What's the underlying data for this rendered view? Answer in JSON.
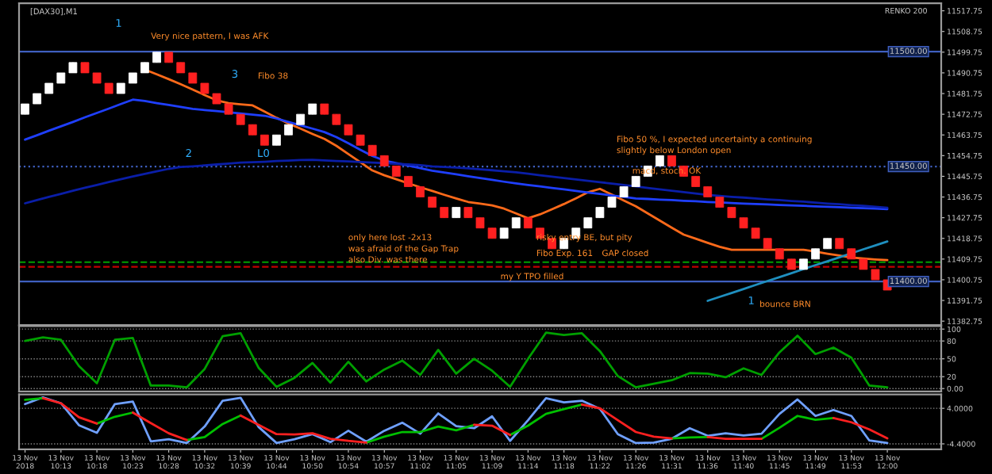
{
  "chart_data": [
    {
      "type": "candlestick",
      "title": "[DAX30],M1",
      "tick_labels": "y",
      "ylim": [
        11381,
        11521
      ],
      "yticks": [
        11382.75,
        11391.75,
        11400.75,
        11409.75,
        11418.75,
        11427.75,
        11436.75,
        11445.75,
        11454.75,
        11463.75,
        11472.75,
        11481.75,
        11490.75,
        11499.75,
        11508.75,
        11517.75
      ],
      "categories": [
        null,
        null,
        null,
        null,
        null,
        null,
        null,
        null,
        null,
        null,
        null,
        null,
        null,
        null,
        null,
        null,
        null,
        null,
        null,
        null,
        null,
        null,
        null,
        null,
        null,
        null,
        null,
        null,
        null,
        null,
        null,
        null,
        null,
        null,
        null,
        null,
        null,
        null,
        null,
        null,
        null,
        null,
        null,
        null,
        null,
        null,
        null,
        null,
        null,
        null,
        null,
        null,
        null,
        null,
        null,
        null,
        null,
        null,
        null,
        null,
        null,
        null,
        null,
        null,
        null,
        null,
        null,
        null,
        null,
        null,
        null,
        null,
        null
      ],
      "ohlc": [
        [
          11472.75,
          11477.25,
          11472.75,
          11477.25
        ],
        [
          11477.25,
          11481.75,
          11477.25,
          11481.75
        ],
        [
          11481.75,
          11486.25,
          11481.75,
          11486.25
        ],
        [
          11486.25,
          11490.75,
          11486.25,
          11490.75
        ],
        [
          11490.75,
          11495.25,
          11490.75,
          11495.25
        ],
        [
          11495.25,
          11495.25,
          11490.75,
          11490.75
        ],
        [
          11490.75,
          11490.75,
          11486.25,
          11486.25
        ],
        [
          11486.25,
          11486.25,
          11481.75,
          11481.75
        ],
        [
          11481.75,
          11486.25,
          11481.75,
          11486.25
        ],
        [
          11486.25,
          11490.75,
          11486.25,
          11490.75
        ],
        [
          11490.75,
          11495.25,
          11490.75,
          11495.25
        ],
        [
          11495.25,
          11499.75,
          11495.25,
          11499.75
        ],
        [
          11499.75,
          11499.75,
          11495.25,
          11495.25
        ],
        [
          11495.25,
          11495.25,
          11490.75,
          11490.75
        ],
        [
          11490.75,
          11490.75,
          11486.25,
          11486.25
        ],
        [
          11486.25,
          11486.25,
          11481.75,
          11481.75
        ],
        [
          11481.75,
          11481.75,
          11477.25,
          11477.25
        ],
        [
          11477.25,
          11477.25,
          11472.75,
          11472.75
        ],
        [
          11472.75,
          11472.75,
          11468.25,
          11468.25
        ],
        [
          11468.25,
          11468.25,
          11463.75,
          11463.75
        ],
        [
          11463.75,
          11463.75,
          11459.25,
          11459.25
        ],
        [
          11459.25,
          11463.75,
          11459.25,
          11463.75
        ],
        [
          11463.75,
          11468.25,
          11463.75,
          11468.25
        ],
        [
          11468.25,
          11472.75,
          11468.25,
          11472.75
        ],
        [
          11472.75,
          11477.25,
          11472.75,
          11477.25
        ],
        [
          11477.25,
          11477.25,
          11472.75,
          11472.75
        ],
        [
          11472.75,
          11472.75,
          11468.25,
          11468.25
        ],
        [
          11468.25,
          11468.25,
          11463.75,
          11463.75
        ],
        [
          11463.75,
          11463.75,
          11459.25,
          11459.25
        ],
        [
          11459.25,
          11459.25,
          11454.75,
          11454.75
        ],
        [
          11454.75,
          11454.75,
          11450.25,
          11450.25
        ],
        [
          11450.25,
          11450.25,
          11445.75,
          11445.75
        ],
        [
          11445.75,
          11445.75,
          11441.25,
          11441.25
        ],
        [
          11441.25,
          11441.25,
          11436.75,
          11436.75
        ],
        [
          11436.75,
          11436.75,
          11432.25,
          11432.25
        ],
        [
          11432.25,
          11432.25,
          11427.75,
          11427.75
        ],
        [
          11427.75,
          11432.25,
          11427.75,
          11432.25
        ],
        [
          11432.25,
          11432.25,
          11427.75,
          11427.75
        ],
        [
          11427.75,
          11427.75,
          11423.25,
          11423.25
        ],
        [
          11423.25,
          11423.25,
          11418.75,
          11418.75
        ],
        [
          11418.75,
          11423.25,
          11418.75,
          11423.25
        ],
        [
          11423.25,
          11427.75,
          11423.25,
          11427.75
        ],
        [
          11427.75,
          11427.75,
          11423.25,
          11423.25
        ],
        [
          11423.25,
          11423.25,
          11418.75,
          11418.75
        ],
        [
          11418.75,
          11418.75,
          11414.25,
          11414.25
        ],
        [
          11414.25,
          11418.75,
          11414.25,
          11418.75
        ],
        [
          11418.75,
          11423.25,
          11418.75,
          11423.25
        ],
        [
          11423.25,
          11427.75,
          11423.25,
          11427.75
        ],
        [
          11427.75,
          11432.25,
          11427.75,
          11432.25
        ],
        [
          11432.25,
          11436.75,
          11432.25,
          11436.75
        ],
        [
          11436.75,
          11441.25,
          11436.75,
          11441.25
        ],
        [
          11441.25,
          11445.75,
          11441.25,
          11445.75
        ],
        [
          11445.75,
          11450.25,
          11445.75,
          11450.25
        ],
        [
          11450.25,
          11454.75,
          11450.25,
          11454.75
        ],
        [
          11454.75,
          11454.75,
          11450.25,
          11450.25
        ],
        [
          11450.25,
          11450.25,
          11445.75,
          11445.75
        ],
        [
          11445.75,
          11445.75,
          11441.25,
          11441.25
        ],
        [
          11441.25,
          11441.25,
          11436.75,
          11436.75
        ],
        [
          11436.75,
          11436.75,
          11432.25,
          11432.25
        ],
        [
          11432.25,
          11432.25,
          11427.75,
          11427.75
        ],
        [
          11427.75,
          11427.75,
          11423.25,
          11423.25
        ],
        [
          11423.25,
          11423.25,
          11418.75,
          11418.75
        ],
        [
          11418.75,
          11418.75,
          11414.25,
          11414.25
        ],
        [
          11414.25,
          11414.25,
          11409.75,
          11409.75
        ],
        [
          11409.75,
          11409.75,
          11405.25,
          11405.25
        ],
        [
          11405.25,
          11409.75,
          11405.25,
          11409.75
        ],
        [
          11409.75,
          11414.25,
          11409.75,
          11414.25
        ],
        [
          11414.25,
          11418.75,
          11414.25,
          11418.75
        ],
        [
          11418.75,
          11418.75,
          11414.25,
          11414.25
        ],
        [
          11414.25,
          11414.25,
          11409.75,
          11409.75
        ],
        [
          11409.75,
          11409.75,
          11405.25,
          11405.25
        ],
        [
          11405.25,
          11405.25,
          11400.75,
          11400.75
        ],
        [
          11400.75,
          11400.75,
          11396.25,
          11396.25
        ]
      ],
      "colors": [
        "#ffffff",
        "#ffffff",
        "#ffffff",
        "#ffffff",
        "#ffffff",
        "#ff2020",
        "#ff2020",
        "#ff2020",
        "#ffffff",
        "#ffffff",
        "#ffffff",
        "#ffffff",
        "#ff2020",
        "#ff2020",
        "#ff2020",
        "#ff2020",
        "#ff2020",
        "#ff2020",
        "#ff2020",
        "#ff2020",
        "#ff2020",
        "#ffffff",
        "#ffffff",
        "#ffffff",
        "#ffffff",
        "#ff2020",
        "#ff2020",
        "#ff2020",
        "#ff2020",
        "#ff2020",
        "#ff2020",
        "#ff2020",
        "#ff2020",
        "#ff2020",
        "#ff2020",
        "#ff2020",
        "#ffffff",
        "#ff2020",
        "#ff2020",
        "#ff2020",
        "#ffffff",
        "#ffffff",
        "#ff2020",
        "#ff2020",
        "#ff2020",
        "#ffffff",
        "#ffffff",
        "#ffffff",
        "#ffffff",
        "#ffffff",
        "#ffffff",
        "#ffffff",
        "#ffffff",
        "#ffffff",
        "#ff2020",
        "#ff2020",
        "#ff2020",
        "#ff2020",
        "#ff2020",
        "#ff2020",
        "#ff2020",
        "#ff2020",
        "#ff2020",
        "#ff2020",
        "#ff2020",
        "#ffffff",
        "#ffffff",
        "#ffffff",
        "#ff2020",
        "#ff2020",
        "#ff2020",
        "#ff2020",
        "#ff2020"
      ],
      "series": [
        {
          "type": "line",
          "color": "#ff6a1a",
          "values": [
            null,
            null,
            null,
            null,
            null,
            null,
            null,
            null,
            null,
            null,
            11492.2,
            11490.1,
            11488.0,
            11485.8,
            11483.5,
            11481.1,
            11478.8,
            11477.6,
            11477.1,
            11476.6,
            11473.9,
            11471.2,
            11468.7,
            11466.5,
            11464.2,
            11462.0,
            11459.0,
            11455.4,
            11451.9,
            11448.3,
            11446.2,
            11444.5,
            11442.7,
            11441.0,
            11439.4,
            11437.7,
            11436.1,
            11434.6,
            11433.9,
            11433.1,
            11431.7,
            11429.6,
            11427.5,
            11429.2,
            11431.4,
            11433.7,
            11436.2,
            11438.8,
            11440.3,
            11437.8,
            11435.2,
            11432.7,
            11429.6,
            11426.5,
            11423.4,
            11420.4,
            11418.6,
            11416.8,
            11415.1,
            11413.8,
            11413.8,
            11413.8,
            11413.8,
            11413.8,
            11413.8,
            11413.8,
            11413.0,
            11412.1,
            11411.3,
            11410.4,
            11410.0,
            11409.6,
            11409.3
          ]
        },
        {
          "type": "line",
          "color": "#1f3fff",
          "values": [
            11461.7,
            11463.6,
            11465.6,
            11467.5,
            11469.4,
            11471.4,
            11473.3,
            11475.2,
            11477.2,
            11479.1,
            11478.5,
            11477.6,
            11476.8,
            11475.9,
            11475.1,
            11474.6,
            11474.1,
            11473.6,
            11473.1,
            11472.6,
            11472.1,
            11470.9,
            11469.4,
            11467.9,
            11466.5,
            11465.0,
            11462.8,
            11460.1,
            11457.3,
            11454.6,
            11452.6,
            11451.5,
            11450.4,
            11449.3,
            11448.2,
            11447.4,
            11446.6,
            11445.8,
            11445.0,
            11444.2,
            11443.4,
            11442.7,
            11442.0,
            11441.4,
            11440.7,
            11440.1,
            11439.4,
            11438.7,
            11438.1,
            11437.4,
            11436.8,
            11436.1,
            11435.9,
            11435.6,
            11435.4,
            11435.1,
            11434.9,
            11434.6,
            11434.4,
            11434.1,
            11433.9,
            11433.7,
            11433.5,
            11433.3,
            11433.1,
            11432.9,
            11432.7,
            11432.5,
            11432.3,
            11432.1,
            11431.9,
            11431.7,
            11431.5
          ]
        },
        {
          "type": "line",
          "color": "#0a1ea8",
          "values": [
            11434.0,
            11435.4,
            11436.8,
            11438.1,
            11439.5,
            11440.8,
            11442.0,
            11443.3,
            11444.5,
            11445.7,
            11446.8,
            11447.9,
            11449.0,
            11449.8,
            11450.1,
            11450.5,
            11450.9,
            11451.3,
            11451.7,
            11451.9,
            11452.1,
            11452.4,
            11452.6,
            11452.8,
            11452.9,
            11452.7,
            11452.4,
            11452.2,
            11452.0,
            11451.7,
            11451.5,
            11451.2,
            11450.9,
            11450.6,
            11450.1,
            11449.8,
            11449.6,
            11449.2,
            11448.8,
            11448.4,
            11447.9,
            11447.5,
            11446.9,
            11446.2,
            11445.6,
            11445.0,
            11444.4,
            11443.8,
            11443.2,
            11442.6,
            11442.0,
            11441.4,
            11440.7,
            11440.1,
            11439.5,
            11438.9,
            11438.3,
            11437.7,
            11437.2,
            11436.8,
            11436.5,
            11436.1,
            11435.7,
            11435.4,
            11435.0,
            11434.7,
            11434.3,
            11433.9,
            11433.6,
            11433.2,
            11432.9,
            11432.5,
            11432.1
          ]
        },
        {
          "type": "line",
          "color": "#1f8fbf",
          "values": [
            null,
            null,
            null,
            null,
            null,
            null,
            null,
            null,
            null,
            null,
            null,
            null,
            null,
            null,
            null,
            null,
            null,
            null,
            null,
            null,
            null,
            null,
            null,
            null,
            null,
            null,
            null,
            null,
            null,
            null,
            null,
            null,
            null,
            null,
            null,
            null,
            null,
            null,
            null,
            null,
            null,
            null,
            null,
            null,
            null,
            null,
            null,
            null,
            null,
            null,
            null,
            null,
            null,
            null,
            null,
            null,
            null,
            11391.6,
            11393.3,
            11395.0,
            11396.7,
            11398.5,
            11400.2,
            11401.9,
            11403.6,
            11405.4,
            11407.1,
            11408.8,
            11410.5,
            11412.3,
            11414.0,
            11415.7,
            11417.4
          ]
        }
      ],
      "ref_lines": [
        {
          "axis": "y",
          "value": 11500,
          "label": "11500.00",
          "color": "#3f5fbf",
          "line_style": "solid"
        },
        {
          "axis": "y",
          "value": 11450,
          "label": "11450.00",
          "color": "#3f5fbf",
          "line_style": "dotted"
        },
        {
          "axis": "y",
          "value": 11400,
          "label": "11400.00",
          "color": "#3f5fbf",
          "line_style": "solid"
        },
        {
          "axis": "y",
          "value": 11408.4,
          "color": "#00a000",
          "line_style": "dashed"
        },
        {
          "axis": "y",
          "value": 11406.4,
          "color": "#c00000",
          "line_style": "dashed"
        }
      ],
      "annotations": [
        "RENKO 200",
        "1",
        "Very nice pattern, I was AFK",
        "2",
        "3",
        "Fibo 38",
        "L0",
        "only here lost -2x13",
        "was afraid of the Gap Trap",
        "also Div. was there",
        "risky entry BE, but pity",
        "Fibo Exp. 161",
        "GAP closed",
        "my Y TPO filled",
        "Fibo 50 %, I expected uncertainty a continuing",
        "slightly below London open",
        "macd, stoch. OK",
        "1",
        "bounce BRN"
      ]
    },
    {
      "type": "line",
      "tick_labels": "y",
      "grid": "y",
      "ylim": [
        -5,
        105
      ],
      "yticks": [
        {
          "value": 0,
          "label": "0.00"
        },
        20,
        50,
        80,
        100
      ],
      "categories": [
        null,
        null,
        null,
        null,
        null,
        null,
        null,
        null,
        null,
        null,
        null,
        null,
        null,
        null,
        null,
        null,
        null,
        null,
        null,
        null,
        null,
        null,
        null,
        null,
        null,
        null,
        null,
        null,
        null,
        null,
        null,
        null,
        null,
        null,
        null,
        null,
        null,
        null,
        null,
        null,
        null,
        null,
        null,
        null,
        null,
        null,
        null,
        null,
        null
      ],
      "series": [
        {
          "color": "#00a000",
          "values": [
            80,
            86,
            82,
            38,
            9,
            82,
            85,
            5,
            5,
            2,
            33,
            88,
            93,
            35,
            3,
            18,
            43,
            10,
            45,
            12,
            32,
            47,
            23,
            65,
            25,
            50,
            30,
            3,
            50,
            94,
            90,
            93,
            63,
            21,
            2,
            8,
            14,
            26,
            25,
            19,
            34,
            23,
            61,
            89,
            58,
            69,
            52,
            5,
            2
          ]
        }
      ]
    },
    {
      "type": "line",
      "grid": "y",
      "ylim": [
        -5.7,
        7.3
      ],
      "yticks": [
        {
          "value": 4.0,
          "label": "4.0000"
        },
        {
          "value": -4.4,
          "label": "-4.4000"
        }
      ],
      "categories": [
        "13 Nov 2018",
        null,
        "13 Nov 10:13",
        null,
        "13 Nov 10:18",
        null,
        "13 Nov 10:23",
        null,
        "13 Nov 10:28",
        null,
        "13 Nov 10:32",
        null,
        "13 Nov 10:39",
        null,
        "13 Nov 10:44",
        null,
        "13 Nov 10:50",
        null,
        "13 Nov 10:54",
        null,
        "13 Nov 10:57",
        null,
        "13 Nov 11:02",
        null,
        "13 Nov 11:05",
        null,
        "13 Nov 11:09",
        null,
        "13 Nov 11:14",
        null,
        "13 Nov 11:18",
        null,
        "13 Nov 11:22",
        null,
        "13 Nov 11:26",
        null,
        "13 Nov 11:31",
        null,
        "13 Nov 11:36",
        null,
        "13 Nov 11:40",
        null,
        "13 Nov 11:45",
        null,
        "13 Nov 11:49",
        null,
        "13 Nov 11:53",
        null,
        "13 Nov 12:00"
      ],
      "series": [
        {
          "color": "#6fa0ff",
          "values": [
            5.0,
            6.6,
            5.2,
            0.0,
            -1.8,
            5.0,
            5.6,
            -3.8,
            -3.3,
            -4.2,
            -0.3,
            5.8,
            6.5,
            -0.4,
            -4.2,
            -3.3,
            -2.1,
            -4.0,
            -1.3,
            -3.9,
            -1.3,
            0.6,
            -2.0,
            2.8,
            -0.2,
            -0.7,
            2.1,
            -3.7,
            1.2,
            6.4,
            5.4,
            5.8,
            3.9,
            -2.1,
            -4.2,
            -4.1,
            -3.2,
            -0.7,
            -2.5,
            -1.9,
            -2.4,
            -2.0,
            2.7,
            6.1,
            2.2,
            3.6,
            2.2,
            -3.6,
            -4.2
          ]
        },
        {
          "color": "#00c000",
          "values": [
            6.0,
            6.4,
            null,
            null,
            0.4,
            2.0,
            3.0,
            null,
            null,
            -3.5,
            -2.8,
            0.3,
            2.3,
            null,
            null,
            null,
            null,
            null,
            null,
            -4.1,
            -2.7,
            -1.6,
            -1.6,
            -0.3,
            -1.2,
            0.1,
            null,
            -2.3,
            -0.1,
            2.7,
            3.8,
            4.9,
            null,
            null,
            null,
            null,
            -3.1,
            -2.9,
            -2.8,
            null,
            null,
            -3.2,
            -0.6,
            2.2,
            1.3,
            1.7,
            null,
            null,
            null
          ]
        },
        {
          "color": "#ff2020",
          "values": [
            null,
            6.4,
            5.2,
            1.9,
            0.4,
            null,
            3.0,
            0.5,
            -1.9,
            -3.5,
            null,
            null,
            2.3,
            0.1,
            -2.1,
            -2.2,
            -1.9,
            -3.2,
            -3.7,
            -4.1,
            null,
            null,
            null,
            null,
            null,
            0.1,
            -0.1,
            -2.3,
            null,
            null,
            null,
            4.9,
            4.0,
            1.2,
            -1.6,
            -2.7,
            -3.1,
            null,
            -2.8,
            -3.2,
            -3.2,
            -3.2,
            null,
            null,
            null,
            1.7,
            0.7,
            -1.0,
            -3.1
          ]
        }
      ]
    }
  ]
}
